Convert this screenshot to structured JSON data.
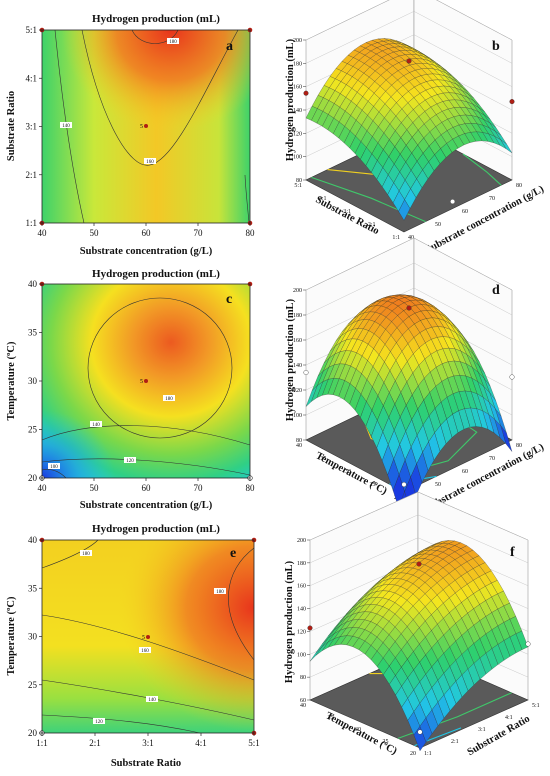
{
  "chart_data": [
    {
      "type": "heatmap",
      "panel": "a",
      "title": "Hydrogen production (mL)",
      "xlabel": "Substrate concentration (g/L)",
      "ylabel": "Substrate Ratio",
      "xlim": [
        40,
        80
      ],
      "ylim": [
        1,
        5
      ],
      "xticks": [
        "40",
        "50",
        "60",
        "70",
        "80"
      ],
      "yticks": [
        "1:1",
        "2:1",
        "3:1",
        "4:1",
        "5:1"
      ],
      "contour_labels": [
        "180",
        "160",
        "140",
        "160"
      ],
      "center_point": {
        "x": 60,
        "y": 3,
        "label": "5"
      }
    },
    {
      "type": "area",
      "panel": "b",
      "zlabel": "Hydrogen production (mL)",
      "xlabel": "Substrate concentration (g/L)",
      "ylabel": "Substrate Ratio",
      "zticks": [
        "80",
        "100",
        "120",
        "140",
        "160",
        "180",
        "200"
      ],
      "xticks": [
        "40",
        "50",
        "60",
        "70",
        "80"
      ],
      "yticks": [
        "1:1",
        "2:1",
        "3:1",
        "4:1",
        "5:1"
      ]
    },
    {
      "type": "heatmap",
      "panel": "c",
      "title": "Hydrogen production (mL)",
      "xlabel": "Substrate concentration (g/L)",
      "ylabel": "Temperature (ºC)",
      "xlim": [
        40,
        80
      ],
      "ylim": [
        20,
        40
      ],
      "xticks": [
        "40",
        "50",
        "60",
        "70",
        "80"
      ],
      "yticks": [
        "20",
        "25",
        "30",
        "35",
        "40"
      ],
      "contour_labels": [
        "180",
        "140",
        "120",
        "100"
      ],
      "center_point": {
        "x": 60,
        "y": 30,
        "label": "5"
      }
    },
    {
      "type": "area",
      "panel": "d",
      "zlabel": "Hydrogen production (mL)",
      "xlabel": "Substrate concentration (g/L)",
      "ylabel": "Temperature (ºC)",
      "zticks": [
        "80",
        "100",
        "120",
        "140",
        "160",
        "180",
        "200"
      ],
      "xticks": [
        "40",
        "50",
        "60",
        "70",
        "80"
      ],
      "yticks": [
        "20",
        "25",
        "30",
        "35",
        "40"
      ]
    },
    {
      "type": "heatmap",
      "panel": "e",
      "title": "Hydrogen production (mL)",
      "xlabel": "Substrate Ratio",
      "ylabel": "Temperature (ºC)",
      "xlim": [
        1,
        5
      ],
      "ylim": [
        20,
        40
      ],
      "xticks": [
        "1:1",
        "2:1",
        "3:1",
        "4:1",
        "5:1"
      ],
      "yticks": [
        "20",
        "25",
        "30",
        "35",
        "40"
      ],
      "contour_labels": [
        "180",
        "180",
        "160",
        "140",
        "120"
      ],
      "center_point": {
        "x": 3,
        "y": 30,
        "label": "5"
      }
    },
    {
      "type": "area",
      "panel": "f",
      "zlabel": "Hydrogen production (mL)",
      "xlabel": "Substrate Ratio",
      "ylabel": "Temperature (ºC)",
      "zticks": [
        "60",
        "80",
        "100",
        "120",
        "140",
        "160",
        "180",
        "200"
      ],
      "xticks": [
        "1:1",
        "2:1",
        "3:1",
        "4:1",
        "5:1"
      ],
      "yticks": [
        "20",
        "25",
        "30",
        "35",
        "40"
      ]
    }
  ],
  "colors": {
    "high": "#e8341c",
    "mid": "#f5e61e",
    "low_green": "#2fd06a",
    "low_cyan": "#22c8e6",
    "lowest": "#1a3ae0",
    "point": "#b01e14",
    "floor": "#5a5a5a"
  }
}
